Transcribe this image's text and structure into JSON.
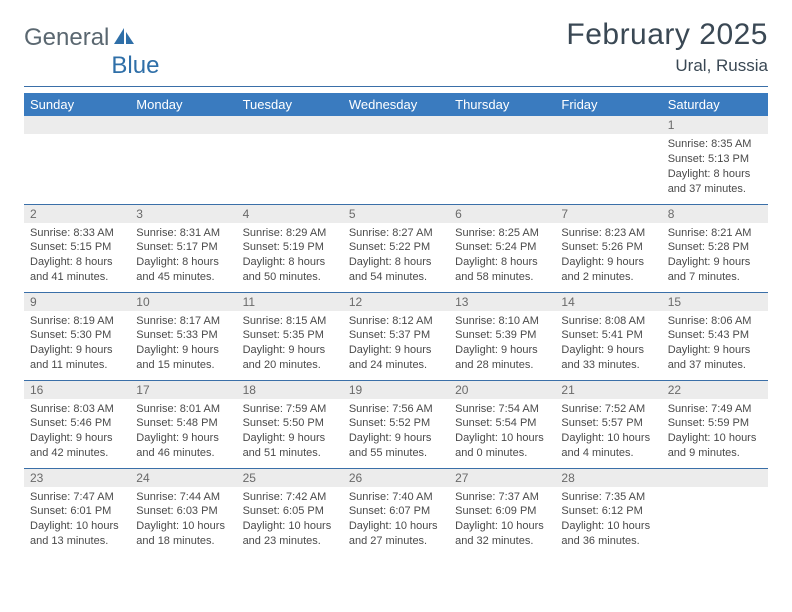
{
  "logo": {
    "text_gray": "General",
    "text_blue": "Blue"
  },
  "title": "February 2025",
  "location": "Ural, Russia",
  "colors": {
    "header_bg": "#3a7bbf",
    "header_text": "#ffffff",
    "divider": "#3a6fa8",
    "daynum_bg": "#ececec",
    "body_text": "#4a4a4a",
    "title_text": "#3a4854",
    "logo_gray": "#5a6770",
    "logo_blue": "#2f6fa8"
  },
  "dayHeaders": [
    "Sunday",
    "Monday",
    "Tuesday",
    "Wednesday",
    "Thursday",
    "Friday",
    "Saturday"
  ],
  "weeks": [
    [
      {
        "n": "",
        "sunrise": "",
        "sunset": "",
        "daylight": ""
      },
      {
        "n": "",
        "sunrise": "",
        "sunset": "",
        "daylight": ""
      },
      {
        "n": "",
        "sunrise": "",
        "sunset": "",
        "daylight": ""
      },
      {
        "n": "",
        "sunrise": "",
        "sunset": "",
        "daylight": ""
      },
      {
        "n": "",
        "sunrise": "",
        "sunset": "",
        "daylight": ""
      },
      {
        "n": "",
        "sunrise": "",
        "sunset": "",
        "daylight": ""
      },
      {
        "n": "1",
        "sunrise": "8:35 AM",
        "sunset": "5:13 PM",
        "daylight": "8 hours and 37 minutes."
      }
    ],
    [
      {
        "n": "2",
        "sunrise": "8:33 AM",
        "sunset": "5:15 PM",
        "daylight": "8 hours and 41 minutes."
      },
      {
        "n": "3",
        "sunrise": "8:31 AM",
        "sunset": "5:17 PM",
        "daylight": "8 hours and 45 minutes."
      },
      {
        "n": "4",
        "sunrise": "8:29 AM",
        "sunset": "5:19 PM",
        "daylight": "8 hours and 50 minutes."
      },
      {
        "n": "5",
        "sunrise": "8:27 AM",
        "sunset": "5:22 PM",
        "daylight": "8 hours and 54 minutes."
      },
      {
        "n": "6",
        "sunrise": "8:25 AM",
        "sunset": "5:24 PM",
        "daylight": "8 hours and 58 minutes."
      },
      {
        "n": "7",
        "sunrise": "8:23 AM",
        "sunset": "5:26 PM",
        "daylight": "9 hours and 2 minutes."
      },
      {
        "n": "8",
        "sunrise": "8:21 AM",
        "sunset": "5:28 PM",
        "daylight": "9 hours and 7 minutes."
      }
    ],
    [
      {
        "n": "9",
        "sunrise": "8:19 AM",
        "sunset": "5:30 PM",
        "daylight": "9 hours and 11 minutes."
      },
      {
        "n": "10",
        "sunrise": "8:17 AM",
        "sunset": "5:33 PM",
        "daylight": "9 hours and 15 minutes."
      },
      {
        "n": "11",
        "sunrise": "8:15 AM",
        "sunset": "5:35 PM",
        "daylight": "9 hours and 20 minutes."
      },
      {
        "n": "12",
        "sunrise": "8:12 AM",
        "sunset": "5:37 PM",
        "daylight": "9 hours and 24 minutes."
      },
      {
        "n": "13",
        "sunrise": "8:10 AM",
        "sunset": "5:39 PM",
        "daylight": "9 hours and 28 minutes."
      },
      {
        "n": "14",
        "sunrise": "8:08 AM",
        "sunset": "5:41 PM",
        "daylight": "9 hours and 33 minutes."
      },
      {
        "n": "15",
        "sunrise": "8:06 AM",
        "sunset": "5:43 PM",
        "daylight": "9 hours and 37 minutes."
      }
    ],
    [
      {
        "n": "16",
        "sunrise": "8:03 AM",
        "sunset": "5:46 PM",
        "daylight": "9 hours and 42 minutes."
      },
      {
        "n": "17",
        "sunrise": "8:01 AM",
        "sunset": "5:48 PM",
        "daylight": "9 hours and 46 minutes."
      },
      {
        "n": "18",
        "sunrise": "7:59 AM",
        "sunset": "5:50 PM",
        "daylight": "9 hours and 51 minutes."
      },
      {
        "n": "19",
        "sunrise": "7:56 AM",
        "sunset": "5:52 PM",
        "daylight": "9 hours and 55 minutes."
      },
      {
        "n": "20",
        "sunrise": "7:54 AM",
        "sunset": "5:54 PM",
        "daylight": "10 hours and 0 minutes."
      },
      {
        "n": "21",
        "sunrise": "7:52 AM",
        "sunset": "5:57 PM",
        "daylight": "10 hours and 4 minutes."
      },
      {
        "n": "22",
        "sunrise": "7:49 AM",
        "sunset": "5:59 PM",
        "daylight": "10 hours and 9 minutes."
      }
    ],
    [
      {
        "n": "23",
        "sunrise": "7:47 AM",
        "sunset": "6:01 PM",
        "daylight": "10 hours and 13 minutes."
      },
      {
        "n": "24",
        "sunrise": "7:44 AM",
        "sunset": "6:03 PM",
        "daylight": "10 hours and 18 minutes."
      },
      {
        "n": "25",
        "sunrise": "7:42 AM",
        "sunset": "6:05 PM",
        "daylight": "10 hours and 23 minutes."
      },
      {
        "n": "26",
        "sunrise": "7:40 AM",
        "sunset": "6:07 PM",
        "daylight": "10 hours and 27 minutes."
      },
      {
        "n": "27",
        "sunrise": "7:37 AM",
        "sunset": "6:09 PM",
        "daylight": "10 hours and 32 minutes."
      },
      {
        "n": "28",
        "sunrise": "7:35 AM",
        "sunset": "6:12 PM",
        "daylight": "10 hours and 36 minutes."
      },
      {
        "n": "",
        "sunrise": "",
        "sunset": "",
        "daylight": ""
      }
    ]
  ],
  "labels": {
    "sunrise": "Sunrise:",
    "sunset": "Sunset:",
    "daylight": "Daylight:"
  }
}
